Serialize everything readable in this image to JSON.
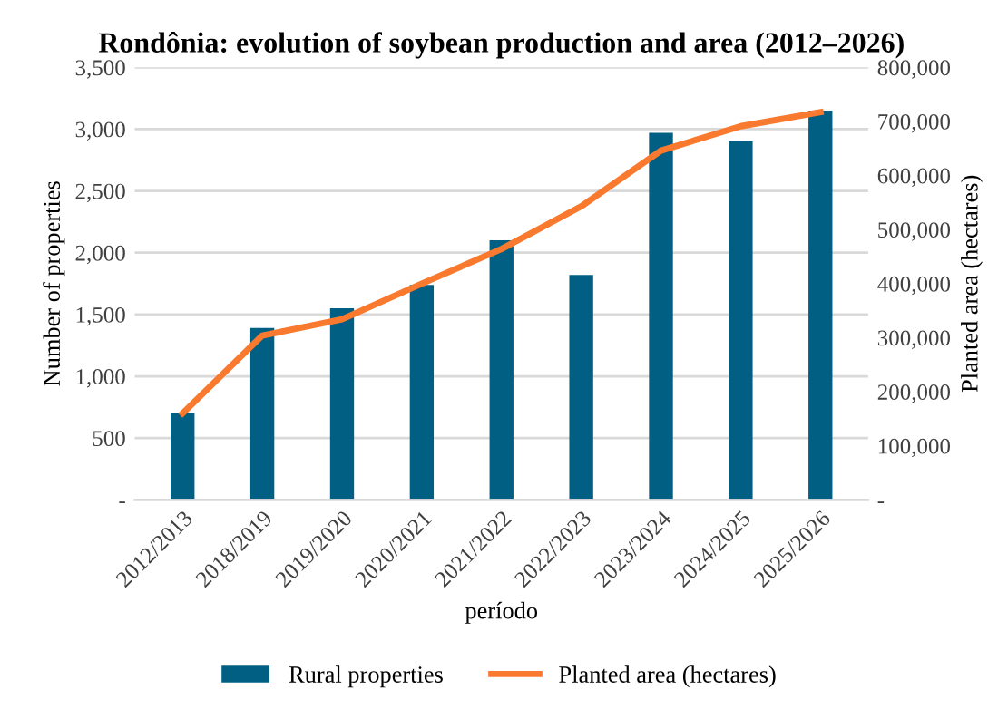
{
  "chart_data": {
    "type": "bar",
    "title": "Rondônia: evolution of soybean production and area (2012–2026)",
    "xlabel": "período",
    "ylabel": "Number of properties",
    "y2label": "Planted area (hectares)",
    "categories": [
      "2012/2013",
      "2018/2019",
      "2019/2020",
      "2020/2021",
      "2021/2022",
      "2022/2023",
      "2023/2024",
      "2024/2025",
      "2025/2026"
    ],
    "series": [
      {
        "name": "Rural properties",
        "color": "#005f83",
        "values": [
          700,
          1390,
          1550,
          1740,
          2100,
          1820,
          2970,
          2900,
          3150
        ]
      },
      {
        "name": "Planted area (hectares)",
        "type": "line",
        "axis": "y2",
        "color": "#f97a2f",
        "values": [
          160000,
          304000,
          334000,
          400000,
          464000,
          543000,
          646000,
          691000,
          717000
        ]
      }
    ],
    "ylim": [
      0,
      3500
    ],
    "yticks": [
      {
        "value": 0,
        "label": "-"
      },
      {
        "value": 500,
        "label": "500"
      },
      {
        "value": 1000,
        "label": "1,000"
      },
      {
        "value": 1500,
        "label": "1,500"
      },
      {
        "value": 2000,
        "label": "2,000"
      },
      {
        "value": 2500,
        "label": "2,500"
      },
      {
        "value": 3000,
        "label": "3,000"
      },
      {
        "value": 3500,
        "label": "3,500"
      }
    ],
    "y2lim": [
      0,
      800000
    ],
    "y2ticks": [
      {
        "value": 0,
        "label": "-"
      },
      {
        "value": 100000,
        "label": "100,000"
      },
      {
        "value": 200000,
        "label": "200,000"
      },
      {
        "value": 300000,
        "label": "300,000"
      },
      {
        "value": 400000,
        "label": "400,000"
      },
      {
        "value": 500000,
        "label": "500,000"
      },
      {
        "value": 600000,
        "label": "600,000"
      },
      {
        "value": 700000,
        "label": "700,000"
      },
      {
        "value": 800000,
        "label": "800,000"
      }
    ],
    "grid": "y",
    "legend": "bottom",
    "marker": "none",
    "line_style": "solid"
  }
}
